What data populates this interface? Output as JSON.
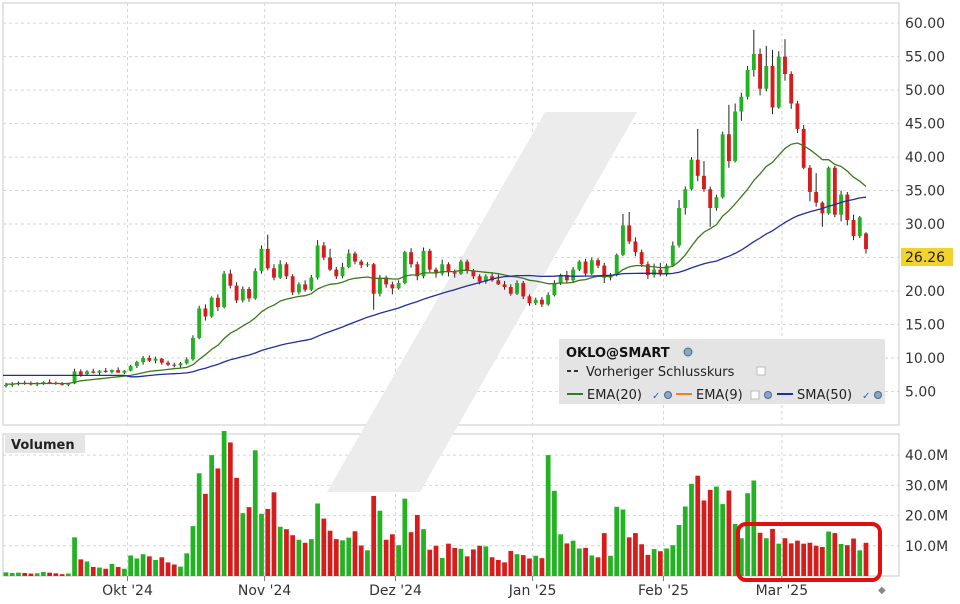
{
  "chart_data": {
    "type": "candlestick",
    "symbol": "OKLO@SMART",
    "last_price_label": "26.26",
    "x_tick_labels": [
      "Okt '24",
      "Nov '24",
      "Dez '24",
      "Jan '25",
      "Feb '25",
      "Mar '25"
    ],
    "price_axis": {
      "ticks": [
        5,
        10,
        15,
        20,
        25,
        30,
        35,
        40,
        45,
        50,
        55,
        60
      ],
      "tick_labels": [
        "5.00",
        "10.00",
        "15.00",
        "20.00",
        "25.00",
        "30.00",
        "35.00",
        "40.00",
        "45.00",
        "50.00",
        "55.00",
        "60.00"
      ],
      "ylim": [
        0,
        63
      ]
    },
    "volume_axis": {
      "title": "Volumen",
      "ticks": [
        10,
        20,
        30,
        40
      ],
      "tick_labels": [
        "10.0M",
        "20.0M",
        "30.0M",
        "40.0M"
      ],
      "ylim": [
        0,
        47
      ],
      "unit": "M"
    },
    "legend": [
      {
        "label": "Vorheriger Schlusskurs",
        "color": "#333333",
        "style": "dashed"
      },
      {
        "label": "EMA(20)",
        "color": "#3a7a1a",
        "style": "solid"
      },
      {
        "label": "EMA(9)",
        "color": "#f08020",
        "style": "solid"
      },
      {
        "label": "SMA(50)",
        "color": "#1f2f9f",
        "style": "solid"
      }
    ],
    "colors": {
      "up": "#22b222",
      "down": "#d81b1b",
      "ema20": "#3a7a1a",
      "sma50": "#1f2f9f",
      "highlight": "#e01010"
    },
    "candles": [
      [
        5.8,
        6.3,
        5.6,
        6.0,
        1.2
      ],
      [
        6.0,
        6.4,
        5.7,
        6.1,
        1.0
      ],
      [
        6.1,
        6.5,
        5.9,
        6.3,
        1.1
      ],
      [
        6.3,
        6.6,
        6.0,
        6.2,
        1.0
      ],
      [
        6.2,
        6.5,
        5.9,
        6.1,
        0.8
      ],
      [
        6.1,
        6.4,
        5.8,
        6.2,
        0.9
      ],
      [
        6.2,
        6.5,
        6.0,
        6.4,
        1.3
      ],
      [
        6.4,
        6.8,
        6.2,
        6.3,
        1.1
      ],
      [
        6.3,
        6.5,
        6.0,
        6.2,
        0.9
      ],
      [
        6.2,
        6.4,
        5.9,
        6.0,
        0.6
      ],
      [
        6.0,
        6.3,
        5.8,
        6.2,
        0.8
      ],
      [
        6.2,
        8.4,
        6.1,
        8.0,
        12.8
      ],
      [
        8.0,
        8.3,
        7.2,
        7.5,
        5.5
      ],
      [
        7.6,
        8.2,
        7.4,
        8.0,
        4.8
      ],
      [
        8.0,
        8.4,
        7.7,
        7.8,
        3.0
      ],
      [
        7.8,
        8.2,
        7.5,
        8.1,
        2.8
      ],
      [
        8.1,
        8.5,
        7.8,
        7.9,
        2.4
      ],
      [
        7.9,
        8.3,
        7.7,
        8.2,
        4.0
      ],
      [
        8.2,
        8.6,
        7.9,
        7.8,
        3.0
      ],
      [
        7.8,
        8.2,
        7.6,
        8.1,
        2.4
      ],
      [
        8.1,
        9.0,
        8.0,
        8.8,
        6.8
      ],
      [
        8.8,
        9.6,
        8.5,
        9.4,
        5.8
      ],
      [
        9.4,
        10.3,
        9.0,
        10.0,
        7.2
      ],
      [
        10.0,
        10.4,
        9.4,
        9.6,
        6.5
      ],
      [
        9.6,
        10.2,
        9.2,
        9.9,
        5.3
      ],
      [
        9.9,
        10.0,
        9.0,
        9.3,
        6.2
      ],
      [
        9.3,
        9.6,
        8.8,
        9.0,
        4.5
      ],
      [
        9.0,
        9.3,
        8.6,
        8.9,
        3.8
      ],
      [
        8.9,
        9.4,
        8.6,
        9.2,
        3.1
      ],
      [
        9.2,
        10.1,
        9.0,
        9.8,
        7.5
      ],
      [
        9.8,
        13.4,
        9.6,
        13.0,
        16.5
      ],
      [
        13.0,
        17.8,
        12.8,
        17.4,
        34.0
      ],
      [
        17.4,
        18.0,
        15.6,
        16.2,
        27.2
      ],
      [
        16.2,
        19.2,
        16.0,
        19.0,
        40.0
      ],
      [
        19.0,
        19.5,
        17.0,
        17.6,
        35.6
      ],
      [
        17.6,
        23.0,
        17.4,
        22.6,
        48.0
      ],
      [
        22.6,
        23.2,
        20.4,
        20.8,
        44.2
      ],
      [
        20.8,
        21.3,
        18.2,
        18.6,
        32.5
      ],
      [
        18.6,
        20.7,
        18.3,
        20.3,
        20.8
      ],
      [
        20.3,
        20.6,
        18.4,
        18.9,
        22.8
      ],
      [
        18.9,
        23.4,
        18.7,
        23.0,
        41.6
      ],
      [
        23.0,
        26.8,
        22.6,
        26.3,
        20.6
      ],
      [
        26.3,
        28.4,
        23.1,
        23.4,
        22.2
      ],
      [
        23.4,
        24.0,
        21.6,
        22.0,
        27.7
      ],
      [
        22.0,
        24.6,
        21.8,
        24.0,
        16.3
      ],
      [
        24.0,
        24.3,
        21.8,
        22.2,
        15.5
      ],
      [
        22.2,
        22.5,
        19.4,
        19.8,
        13.5
      ],
      [
        19.8,
        21.3,
        19.5,
        21.0,
        12.0
      ],
      [
        21.0,
        21.6,
        19.9,
        20.2,
        11.0
      ],
      [
        20.2,
        22.4,
        20.0,
        22.0,
        12.2
      ],
      [
        22.0,
        27.6,
        21.7,
        26.8,
        24.0
      ],
      [
        26.8,
        27.3,
        24.6,
        25.0,
        19.0
      ],
      [
        25.0,
        26.3,
        23.0,
        23.2,
        15.0
      ],
      [
        23.2,
        23.6,
        21.8,
        22.2,
        12.2
      ],
      [
        22.2,
        24.2,
        21.9,
        23.6,
        11.8
      ],
      [
        23.6,
        26.2,
        23.4,
        25.6,
        12.7
      ],
      [
        25.6,
        25.9,
        24.0,
        24.4,
        14.8
      ],
      [
        24.4,
        24.7,
        23.4,
        23.9,
        10.1
      ],
      [
        23.9,
        24.3,
        23.6,
        24.0,
        8.5
      ],
      [
        24.0,
        24.2,
        17.2,
        19.6,
        26.5
      ],
      [
        19.6,
        22.4,
        19.2,
        22.0,
        21.6
      ],
      [
        22.0,
        22.3,
        20.5,
        21.0,
        12.0
      ],
      [
        21.0,
        21.4,
        19.5,
        20.4,
        13.8
      ],
      [
        20.4,
        21.6,
        20.2,
        21.2,
        10.2
      ],
      [
        21.2,
        26.0,
        21.0,
        25.8,
        25.6
      ],
      [
        25.8,
        26.4,
        23.5,
        24.0,
        14.5
      ],
      [
        24.0,
        24.4,
        21.6,
        22.2,
        20.2
      ],
      [
        22.2,
        26.5,
        21.9,
        26.0,
        15.5
      ],
      [
        26.0,
        26.3,
        22.8,
        23.2,
        8.7
      ],
      [
        23.2,
        23.5,
        22.0,
        22.6,
        10.0
      ],
      [
        22.6,
        24.7,
        22.3,
        24.0,
        6.0
      ],
      [
        24.0,
        24.3,
        22.2,
        22.8,
        10.7
      ],
      [
        22.8,
        23.2,
        22.0,
        22.6,
        9.3
      ],
      [
        22.6,
        24.7,
        22.4,
        24.4,
        9.0
      ],
      [
        24.4,
        24.7,
        22.6,
        23.0,
        6.5
      ],
      [
        23.0,
        23.3,
        21.8,
        22.2,
        8.8
      ],
      [
        22.2,
        22.5,
        21.0,
        21.4,
        10.0
      ],
      [
        21.4,
        22.5,
        21.1,
        22.2,
        9.8
      ],
      [
        22.2,
        22.8,
        21.4,
        21.6,
        6.2
      ],
      [
        21.6,
        22.5,
        20.9,
        21.0,
        5.3
      ],
      [
        21.0,
        21.5,
        20.2,
        20.6,
        4.5
      ],
      [
        20.6,
        21.0,
        19.3,
        19.6,
        8.3
      ],
      [
        19.6,
        21.6,
        19.4,
        21.2,
        7.2
      ],
      [
        21.2,
        21.5,
        18.8,
        19.2,
        6.9
      ],
      [
        19.2,
        19.5,
        17.8,
        18.2,
        5.8
      ],
      [
        18.2,
        19.0,
        17.9,
        18.7,
        6.7
      ],
      [
        18.7,
        19.1,
        17.6,
        18.0,
        5.9
      ],
      [
        18.0,
        19.8,
        17.8,
        19.4,
        40.0
      ],
      [
        19.4,
        21.6,
        19.2,
        21.2,
        28.2
      ],
      [
        21.2,
        22.6,
        20.9,
        22.4,
        13.8
      ],
      [
        22.4,
        23.0,
        21.2,
        21.6,
        10.8
      ],
      [
        21.6,
        23.6,
        21.3,
        23.2,
        11.7
      ],
      [
        23.2,
        24.6,
        23.0,
        24.4,
        9.1
      ],
      [
        24.4,
        24.8,
        22.2,
        22.6,
        9.3
      ],
      [
        22.6,
        25.0,
        22.4,
        24.6,
        6.8
      ],
      [
        24.6,
        24.9,
        23.4,
        23.8,
        6.2
      ],
      [
        23.8,
        24.2,
        21.2,
        22.0,
        14.2
      ],
      [
        22.0,
        22.7,
        21.6,
        22.4,
        6.7
      ],
      [
        22.4,
        25.6,
        22.2,
        25.4,
        22.9
      ],
      [
        25.4,
        31.5,
        25.2,
        29.8,
        22.0
      ],
      [
        29.8,
        31.8,
        27.0,
        27.4,
        12.8
      ],
      [
        27.4,
        28.0,
        25.2,
        25.8,
        14.2
      ],
      [
        25.8,
        26.2,
        23.6,
        24.0,
        10.5
      ],
      [
        24.0,
        24.4,
        21.8,
        22.4,
        7.0
      ],
      [
        22.4,
        24.1,
        22.0,
        23.2,
        8.9
      ],
      [
        23.2,
        24.2,
        22.2,
        22.5,
        8.2
      ],
      [
        22.5,
        24.1,
        22.2,
        23.8,
        9.1
      ],
      [
        23.8,
        27.4,
        23.6,
        26.8,
        10.2
      ],
      [
        26.8,
        33.6,
        26.5,
        32.4,
        16.9
      ],
      [
        32.4,
        35.6,
        31.4,
        35.2,
        23.0
      ],
      [
        35.2,
        40.0,
        35.0,
        39.6,
        30.5
      ],
      [
        39.6,
        44.2,
        36.4,
        37.2,
        33.2
      ],
      [
        37.2,
        39.4,
        34.8,
        35.2,
        25.0
      ],
      [
        35.2,
        35.6,
        29.6,
        32.4,
        28.5
      ],
      [
        32.4,
        34.4,
        32.0,
        34.0,
        29.6
      ],
      [
        34.0,
        43.8,
        33.8,
        43.4,
        23.8
      ],
      [
        43.4,
        47.8,
        38.4,
        39.4,
        28.3
      ],
      [
        39.4,
        48.0,
        39.2,
        46.8,
        17.2
      ],
      [
        46.8,
        49.6,
        45.4,
        49.0,
        12.5
      ],
      [
        49.0,
        53.6,
        48.6,
        53.0,
        27.4
      ],
      [
        53.0,
        59.0,
        52.0,
        55.4,
        31.6
      ],
      [
        55.4,
        56.2,
        49.2,
        50.2,
        14.3
      ],
      [
        50.2,
        56.6,
        49.8,
        53.6,
        12.5
      ],
      [
        53.6,
        56.0,
        46.4,
        47.4,
        15.6
      ],
      [
        47.4,
        55.8,
        47.2,
        55.0,
        10.7
      ],
      [
        55.0,
        57.6,
        51.4,
        52.4,
        12.5
      ],
      [
        52.4,
        52.8,
        47.2,
        48.0,
        10.8
      ],
      [
        48.0,
        48.4,
        43.6,
        44.2,
        11.7
      ],
      [
        44.2,
        44.8,
        38.2,
        38.4,
        10.7
      ],
      [
        38.4,
        38.8,
        33.4,
        34.8,
        11.0
      ],
      [
        34.8,
        37.6,
        32.6,
        33.2,
        10.0
      ],
      [
        33.2,
        33.4,
        29.6,
        31.6,
        9.6
      ],
      [
        31.6,
        38.6,
        31.4,
        38.4,
        14.7
      ],
      [
        38.4,
        38.7,
        31.0,
        31.4,
        14.2
      ],
      [
        31.4,
        35.0,
        30.4,
        34.4,
        10.6
      ],
      [
        34.4,
        34.8,
        29.8,
        30.6,
        10.2
      ],
      [
        30.6,
        31.4,
        27.6,
        28.2,
        12.4
      ],
      [
        28.2,
        31.2,
        27.9,
        31.0,
        8.5
      ],
      [
        28.6,
        28.8,
        25.6,
        26.26,
        11.0
      ]
    ],
    "ema20": [
      6.1,
      6.1,
      6.2,
      6.2,
      6.2,
      6.2,
      6.2,
      6.2,
      6.2,
      6.2,
      6.2,
      6.4,
      6.6,
      6.7,
      6.8,
      6.9,
      7.0,
      7.1,
      7.2,
      7.3,
      7.4,
      7.6,
      7.8,
      8.0,
      8.1,
      8.2,
      8.3,
      8.4,
      8.5,
      8.6,
      9.0,
      9.8,
      10.5,
      11.3,
      11.9,
      12.9,
      13.7,
      14.2,
      14.8,
      15.3,
      16.0,
      16.9,
      17.5,
      17.9,
      18.5,
      18.8,
      19.0,
      19.2,
      19.3,
      19.6,
      20.3,
      20.7,
      21.0,
      21.1,
      21.3,
      21.7,
      21.9,
      22.0,
      22.1,
      21.9,
      21.9,
      21.9,
      21.8,
      21.8,
      22.2,
      22.4,
      22.4,
      22.7,
      22.7,
      22.7,
      22.9,
      22.9,
      22.9,
      23.1,
      23.1,
      23.0,
      22.9,
      22.8,
      22.7,
      22.6,
      22.4,
      22.2,
      22.1,
      21.9,
      21.6,
      21.5,
      21.3,
      21.1,
      21.1,
      21.2,
      21.2,
      21.3,
      21.6,
      21.7,
      22.0,
      22.2,
      22.2,
      22.2,
      22.5,
      23.2,
      23.6,
      23.8,
      23.8,
      23.7,
      23.6,
      23.5,
      23.5,
      23.7,
      24.4,
      25.4,
      26.7,
      27.9,
      28.8,
      29.3,
      29.9,
      31.2,
      32.0,
      33.0,
      34.1,
      35.2,
      36.5,
      37.5,
      38.6,
      39.2,
      40.3,
      41.3,
      41.9,
      42.1,
      41.7,
      41.1,
      40.4,
      39.6,
      39.6,
      38.9,
      38.6,
      37.9,
      37.0,
      36.4,
      35.6
    ]
  }
}
